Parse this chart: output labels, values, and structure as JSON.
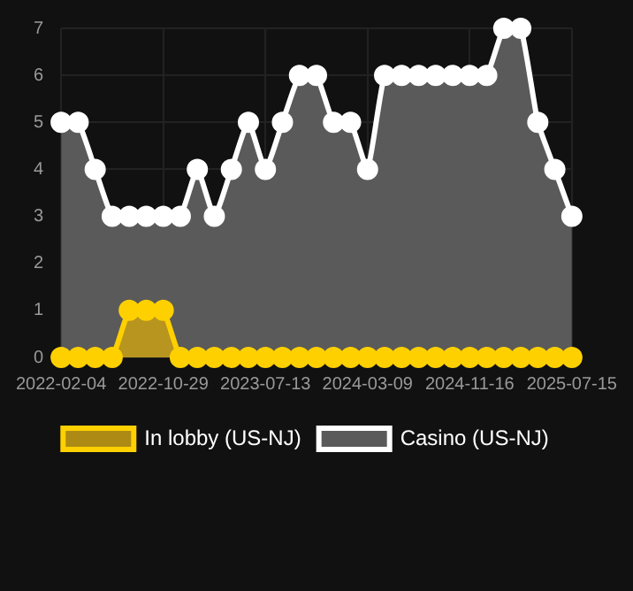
{
  "chart_data": {
    "type": "area",
    "categories": [
      "2022-02-04",
      null,
      null,
      null,
      null,
      null,
      "2022-10-29",
      null,
      null,
      null,
      null,
      null,
      "2023-07-13",
      null,
      null,
      null,
      null,
      null,
      "2024-03-09",
      null,
      null,
      null,
      null,
      null,
      "2024-11-16",
      null,
      null,
      null,
      null,
      null,
      "2025-07-15"
    ],
    "series": [
      {
        "name": "In lobby (US-NJ)",
        "color": "#ffd000",
        "values": [
          0,
          0,
          0,
          0,
          1,
          1,
          1,
          0,
          0,
          0,
          0,
          0,
          0,
          0,
          0,
          0,
          0,
          0,
          0,
          0,
          0,
          0,
          0,
          0,
          0,
          0,
          0,
          0,
          0,
          0,
          0
        ]
      },
      {
        "name": "Casino (US-NJ)",
        "color": "#ffffff",
        "values": [
          5,
          5,
          4,
          3,
          3,
          3,
          3,
          3,
          4,
          3,
          4,
          5,
          4,
          5,
          6,
          6,
          5,
          5,
          4,
          6,
          6,
          6,
          6,
          6,
          6,
          6,
          7,
          7,
          5,
          4,
          3
        ]
      }
    ],
    "ylim": [
      0,
      7
    ],
    "yticks": [
      0,
      1,
      2,
      3,
      4,
      5,
      6,
      7
    ],
    "grid": true,
    "legend": "bottom",
    "marker": "circle",
    "line_style": "solid"
  }
}
